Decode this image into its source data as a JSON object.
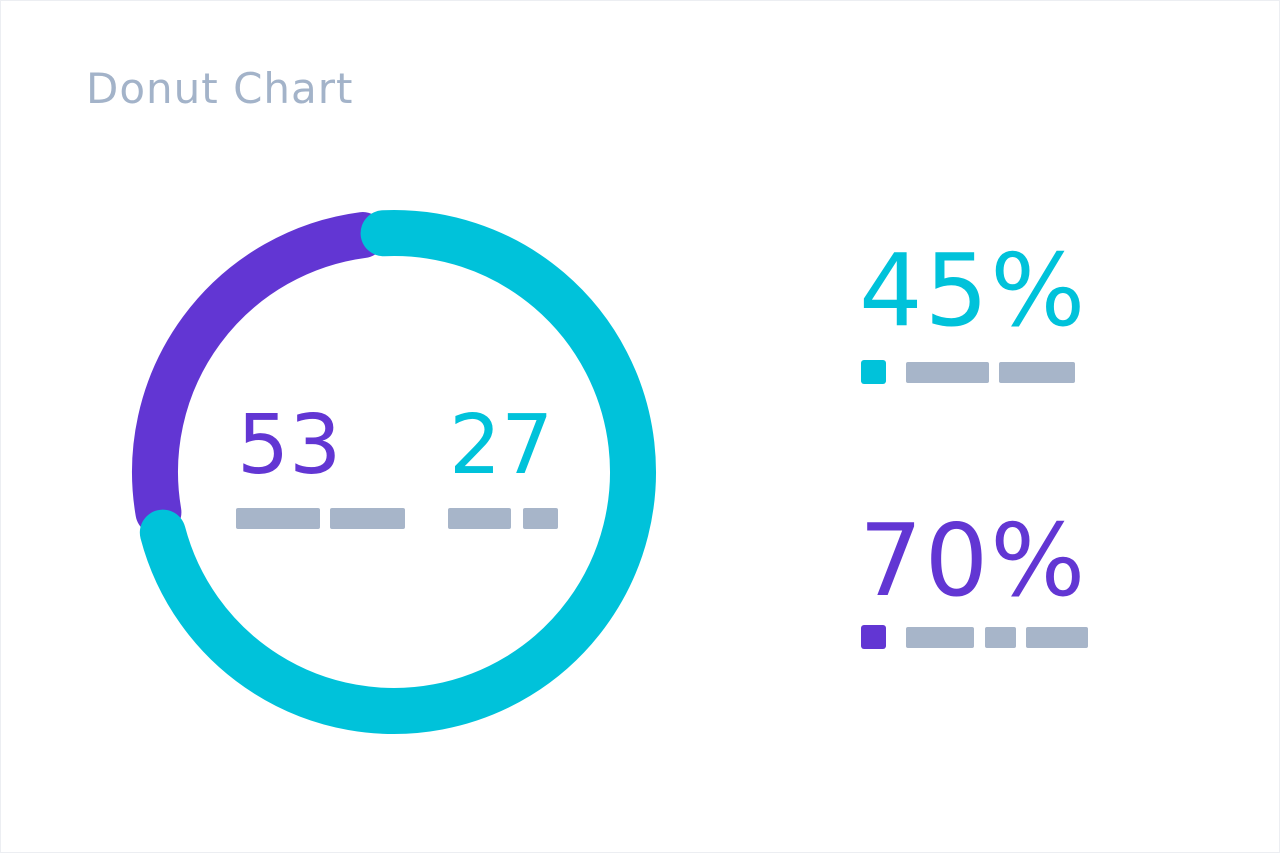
{
  "title": "Donut Chart",
  "colors": {
    "purple": "#6236d3",
    "cyan": "#00c2da",
    "placeholder": "#a7b5c9",
    "title": "#a3b3c9"
  },
  "chart_data": {
    "type": "pie",
    "variant": "donut",
    "segments": [
      {
        "label": "",
        "value": 27,
        "color": "#6236d3"
      },
      {
        "label": "",
        "value": 73,
        "color": "#00c2da"
      }
    ],
    "center_values": [
      {
        "value": "53",
        "color": "#6236d3"
      },
      {
        "value": "27",
        "color": "#00c2da"
      }
    ],
    "legend": [
      {
        "value": "45%",
        "color": "#00c2da"
      },
      {
        "value": "70%",
        "color": "#6236d3"
      }
    ]
  }
}
